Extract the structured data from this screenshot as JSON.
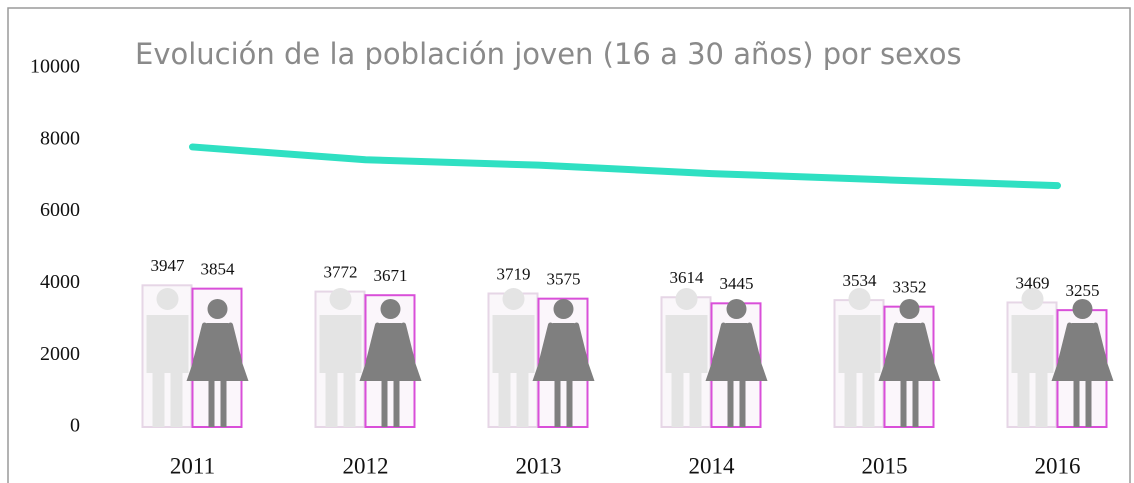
{
  "chart_data": {
    "type": "bar",
    "title": "Evolución de la población joven (16 a 30 años) por sexos",
    "categories": [
      "2011",
      "2012",
      "2013",
      "2014",
      "2015",
      "2016"
    ],
    "series": [
      {
        "type": "bar",
        "color": "#e6d6e6",
        "values": [
          3947,
          3772,
          3719,
          3614,
          3534,
          3469
        ]
      },
      {
        "type": "bar",
        "color": "#d94fd9",
        "values": [
          3854,
          3671,
          3575,
          3445,
          3352,
          3255
        ]
      },
      {
        "type": "line",
        "color": "#2fe0c2",
        "values": [
          7801,
          7443,
          7294,
          7059,
          6886,
          6724
        ]
      }
    ],
    "ylim": [
      0,
      10000
    ],
    "yticks": [
      0,
      2000,
      4000,
      6000,
      8000,
      10000
    ],
    "grid": false
  }
}
